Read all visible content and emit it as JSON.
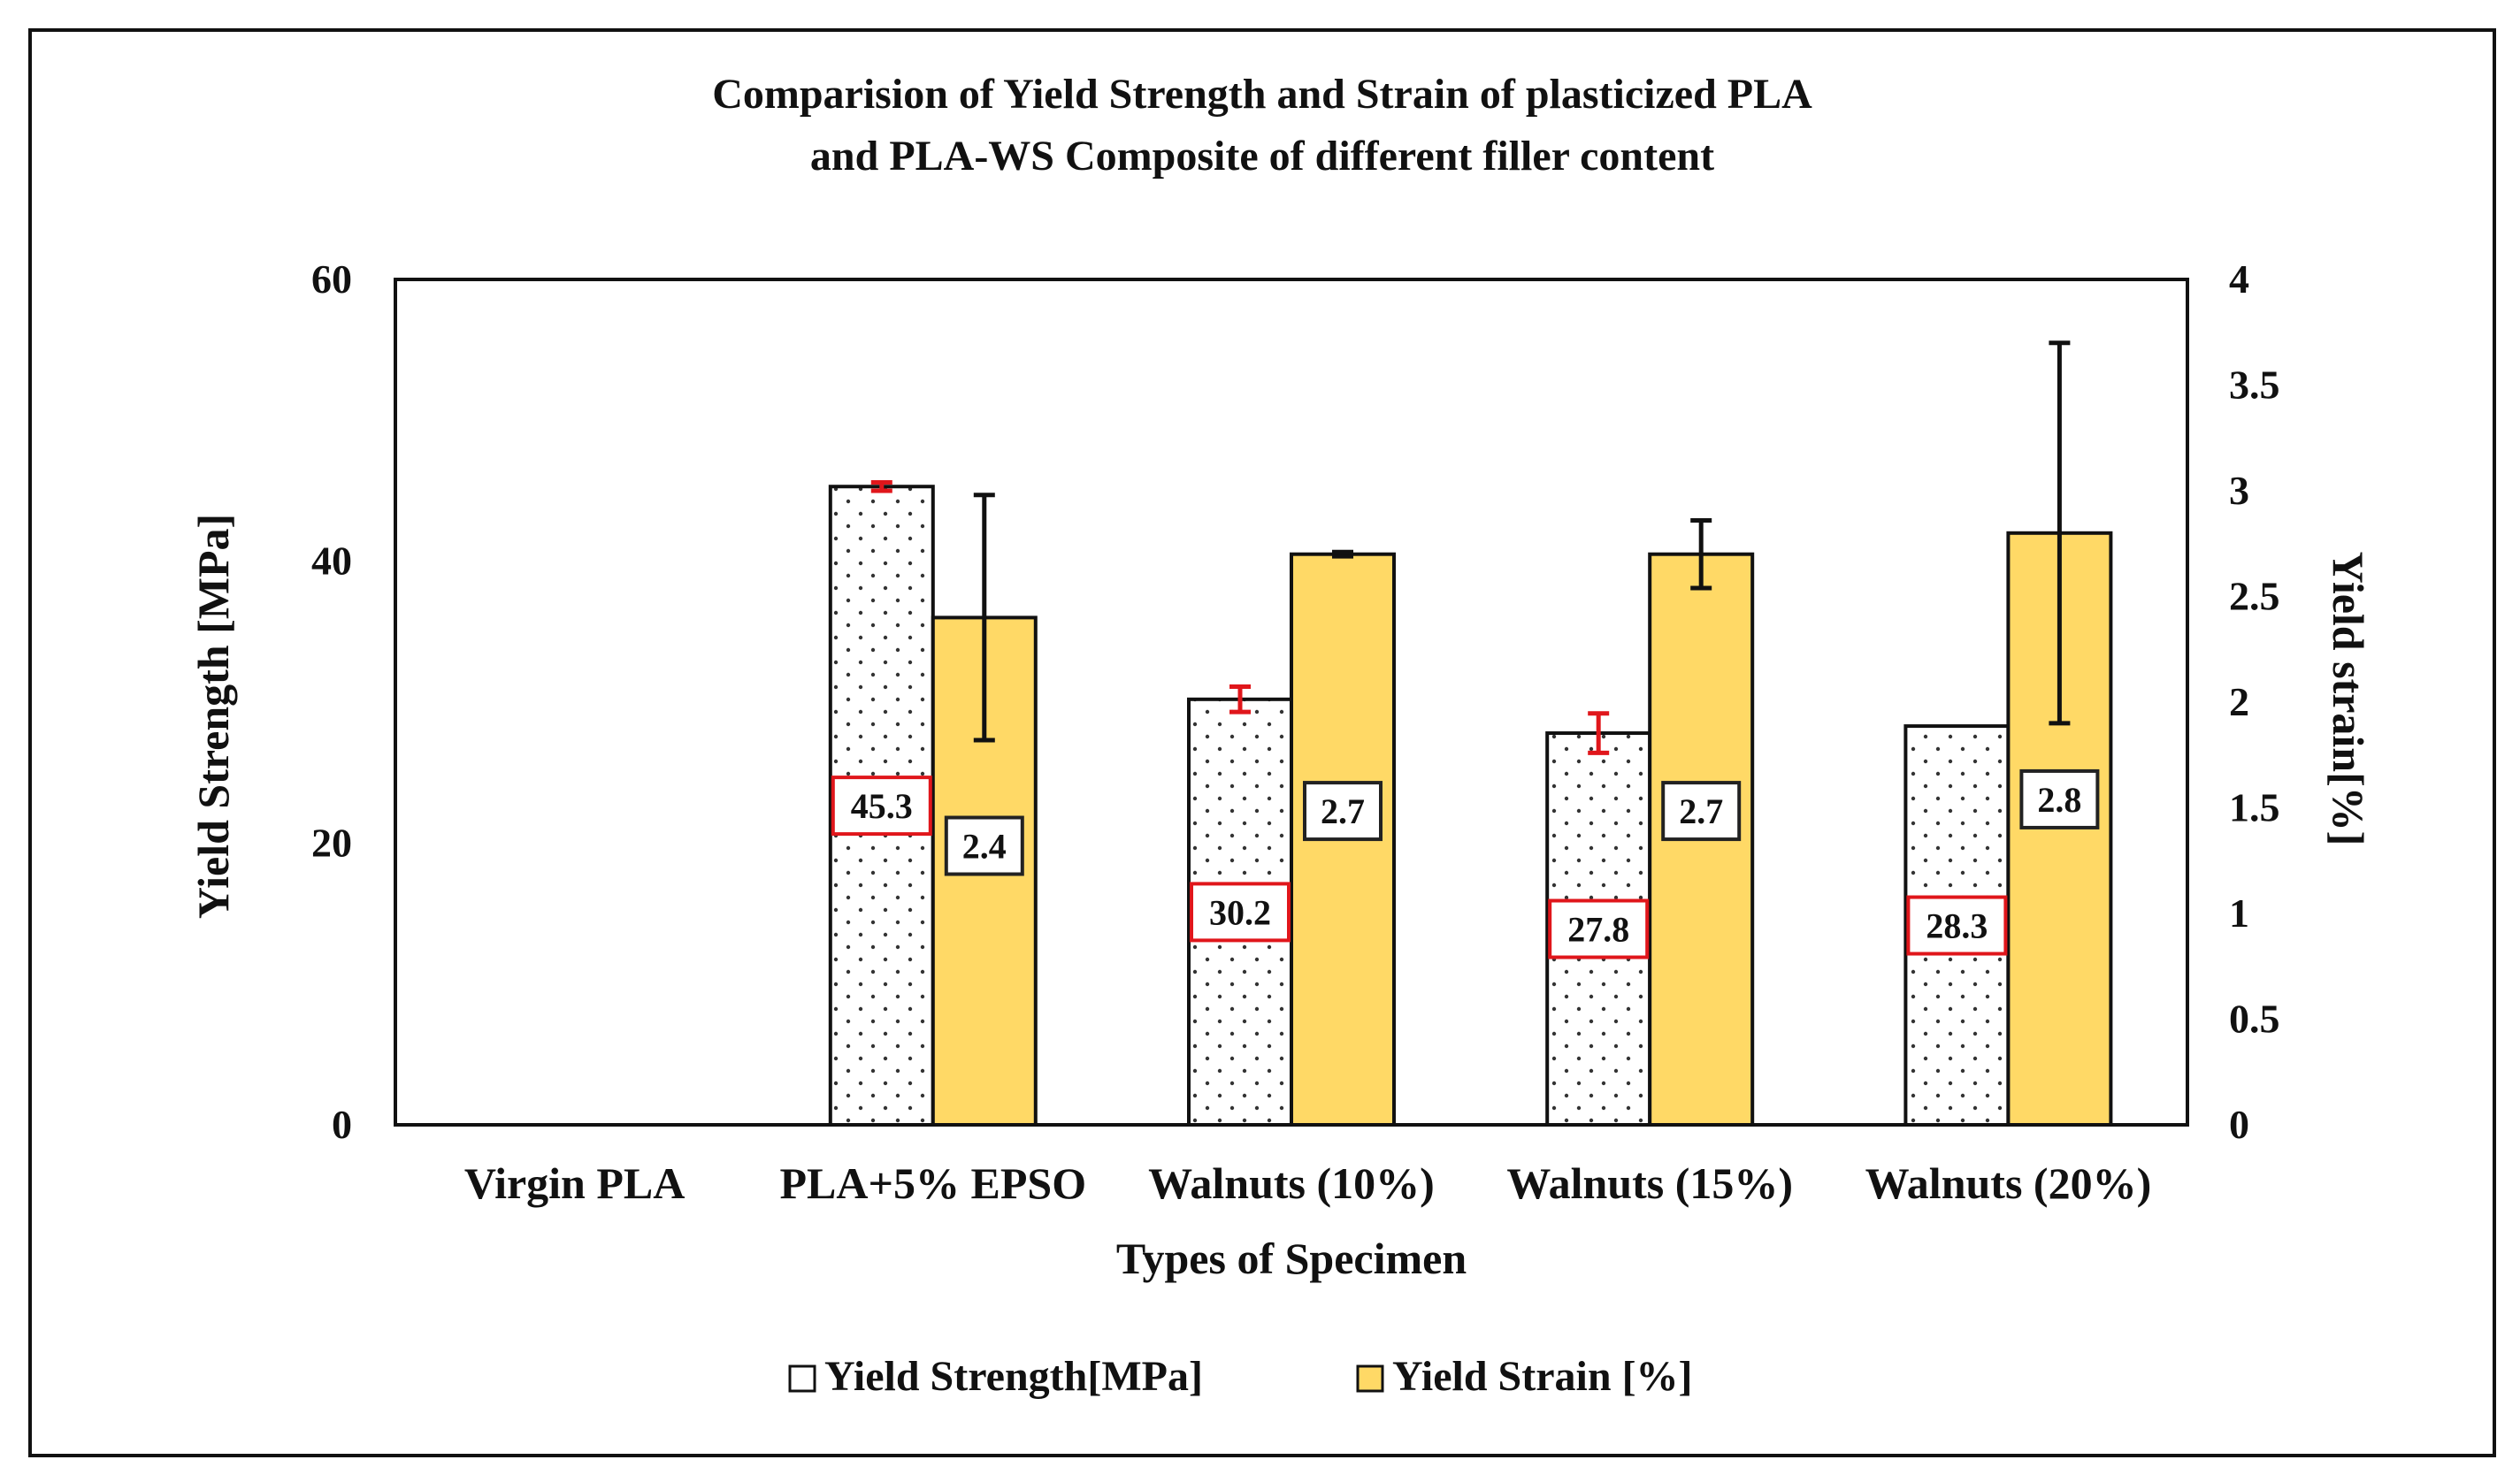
{
  "chart_data": {
    "type": "bar",
    "title": [
      "Comparision of Yield Strength and Strain of plasticized PLA",
      "and PLA-WS Composite of different filler content"
    ],
    "xlabel": "Types of Specimen",
    "ylabel": "Yield Strength [MPa]",
    "y2label": "Yield strain[%]",
    "ylim": [
      0,
      60
    ],
    "y2lim": [
      0,
      4
    ],
    "yticks": [
      "0",
      "20",
      "40",
      "60"
    ],
    "y2ticks": [
      "0",
      "0.5",
      "1",
      "1.5",
      "2",
      "2.5",
      "3",
      "3.5",
      "4"
    ],
    "categories": [
      "Virgin PLA",
      "PLA+5% EPSO",
      "Walnuts (10%)",
      "Walnuts (15%)",
      "Walnuts  (20%)"
    ],
    "series": [
      {
        "name": "Yield Strength[MPa]",
        "axis": "left",
        "pattern": "dots",
        "color": "#ffffff",
        "values": [
          null,
          45.3,
          30.2,
          27.8,
          28.3
        ],
        "errors": [
          null,
          0.3,
          0.9,
          1.4,
          null
        ],
        "labels": [
          "",
          "45.3",
          "30.2",
          "27.8",
          "28.3"
        ]
      },
      {
        "name": "Yield Strain [%]",
        "axis": "right",
        "color": "#ffd966",
        "values": [
          null,
          2.4,
          2.7,
          2.7,
          2.8
        ],
        "errors": [
          null,
          0.58,
          0.01,
          0.16,
          0.9
        ],
        "labels": [
          "",
          "2.4",
          "2.7",
          "2.7",
          "2.8"
        ]
      }
    ],
    "grid": false,
    "legend": "bottom",
    "label_border_colors": {
      "strength": "#e0161b",
      "strain": "#222222"
    },
    "strength_error_color": "#e0161b",
    "strain_error_color": "#111111"
  }
}
